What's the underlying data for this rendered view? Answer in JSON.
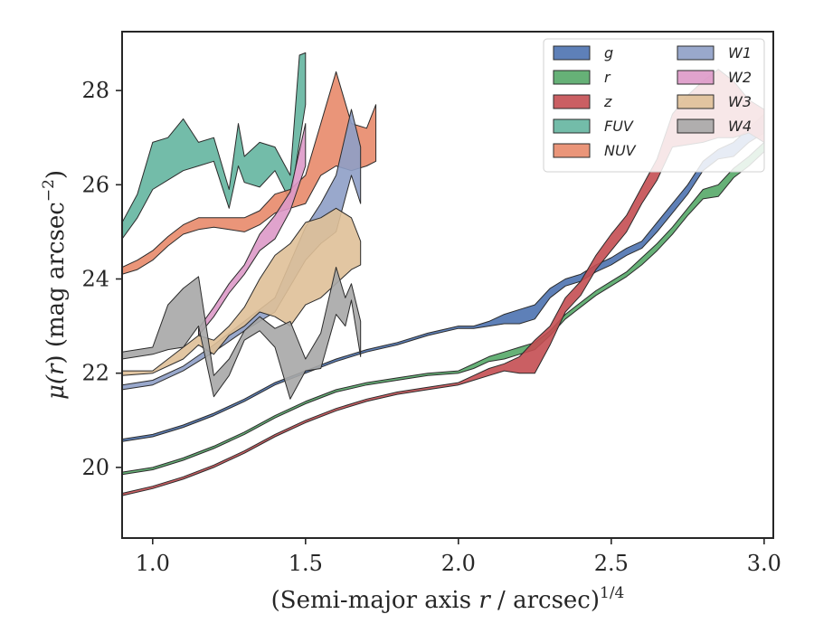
{
  "chart_data": {
    "type": "area",
    "xlabel": "(Semi-major axis r / arcsec)",
    "xlabel_prefix": "(Semi-major axis ",
    "xlabel_var": "r",
    "xlabel_suffix": " / arcsec)",
    "xlabel_exp": "1/4",
    "ylabel": "μ(r) (mag arcsec−2)",
    "ylabel_mu": "μ(",
    "ylabel_var": "r",
    "ylabel_mid": ") (mag arcsec",
    "ylabel_exp": "−2",
    "ylabel_end": ")",
    "xlim": [
      0.9,
      3.03
    ],
    "ylim": [
      29.25,
      18.5
    ],
    "y_inverted": true,
    "xticks": [
      1.0,
      1.5,
      2.0,
      2.5,
      3.0
    ],
    "xtick_labels": [
      "1.0",
      "1.5",
      "2.0",
      "2.5",
      "3.0"
    ],
    "yticks": [
      20,
      22,
      24,
      26,
      28
    ],
    "ytick_labels": [
      "20",
      "22",
      "24",
      "26",
      "28"
    ],
    "grid": false,
    "legend_position": "top-right",
    "legend_columns": 2,
    "series": [
      {
        "name": "g",
        "color": "#4c72b0",
        "x": [
          0.9,
          1.0,
          1.1,
          1.2,
          1.3,
          1.4,
          1.5,
          1.6,
          1.7,
          1.8,
          1.9,
          2.0,
          2.05,
          2.1,
          2.15,
          2.2,
          2.25,
          2.3,
          2.35,
          2.4,
          2.45,
          2.5,
          2.55,
          2.6,
          2.65,
          2.7,
          2.75,
          2.8,
          2.85,
          2.9,
          2.95,
          3.0
        ],
        "y_upper": [
          20.55,
          20.65,
          20.85,
          21.1,
          21.4,
          21.75,
          22.0,
          22.25,
          22.45,
          22.6,
          22.8,
          22.95,
          22.95,
          23.0,
          23.05,
          23.05,
          23.15,
          23.6,
          23.85,
          23.95,
          24.15,
          24.3,
          24.5,
          24.65,
          25.0,
          25.4,
          25.8,
          26.3,
          26.55,
          26.6,
          26.9,
          27.1
        ],
        "y_lower": [
          20.6,
          20.7,
          20.9,
          21.15,
          21.45,
          21.8,
          22.05,
          22.3,
          22.5,
          22.65,
          22.85,
          23.0,
          23.0,
          23.1,
          23.25,
          23.35,
          23.45,
          23.8,
          24.0,
          24.1,
          24.3,
          24.45,
          24.65,
          24.8,
          25.2,
          25.6,
          26.0,
          26.5,
          26.75,
          26.9,
          27.2,
          27.5
        ]
      },
      {
        "name": "r",
        "color": "#55a868",
        "x": [
          0.9,
          1.0,
          1.1,
          1.2,
          1.3,
          1.4,
          1.5,
          1.6,
          1.7,
          1.8,
          1.9,
          2.0,
          2.05,
          2.1,
          2.15,
          2.2,
          2.25,
          2.3,
          2.35,
          2.4,
          2.45,
          2.5,
          2.55,
          2.6,
          2.65,
          2.7,
          2.75,
          2.8,
          2.85,
          2.9,
          2.95,
          3.0
        ],
        "y_upper": [
          19.85,
          19.95,
          20.15,
          20.4,
          20.7,
          21.05,
          21.35,
          21.6,
          21.75,
          21.85,
          21.95,
          22.0,
          22.1,
          22.25,
          22.3,
          22.4,
          22.5,
          22.8,
          23.15,
          23.4,
          23.65,
          23.85,
          24.05,
          24.3,
          24.6,
          24.95,
          25.35,
          25.7,
          25.75,
          26.15,
          26.4,
          26.7
        ],
        "y_lower": [
          19.9,
          20.0,
          20.2,
          20.45,
          20.75,
          21.1,
          21.4,
          21.65,
          21.8,
          21.9,
          22.0,
          22.05,
          22.2,
          22.35,
          22.45,
          22.55,
          22.65,
          22.9,
          23.25,
          23.5,
          23.75,
          23.95,
          24.15,
          24.45,
          24.75,
          25.1,
          25.5,
          25.9,
          26.0,
          26.35,
          26.6,
          26.9
        ]
      },
      {
        "name": "z",
        "color": "#c44e52",
        "x": [
          0.9,
          1.0,
          1.1,
          1.2,
          1.3,
          1.4,
          1.5,
          1.6,
          1.7,
          1.8,
          1.9,
          2.0,
          2.05,
          2.1,
          2.15,
          2.2,
          2.25,
          2.3,
          2.35,
          2.4,
          2.45,
          2.5,
          2.55,
          2.6,
          2.65,
          2.7,
          2.75,
          2.8,
          2.85,
          2.9,
          2.95,
          3.0
        ],
        "y_upper": [
          19.4,
          19.55,
          19.75,
          20.0,
          20.3,
          20.65,
          20.95,
          21.2,
          21.4,
          21.55,
          21.65,
          21.75,
          21.85,
          21.95,
          22.05,
          22.0,
          22.0,
          22.6,
          23.3,
          23.65,
          24.2,
          24.6,
          25.0,
          25.6,
          26.1,
          26.8,
          26.85,
          26.9,
          27.0,
          27.0,
          27.1,
          26.9
        ],
        "y_lower": [
          19.45,
          19.6,
          19.8,
          20.05,
          20.35,
          20.7,
          21.0,
          21.25,
          21.45,
          21.6,
          21.7,
          21.8,
          21.95,
          22.1,
          22.2,
          22.35,
          22.7,
          23.0,
          23.6,
          23.95,
          24.5,
          24.95,
          25.35,
          25.95,
          26.55,
          27.5,
          27.9,
          28.2,
          28.45,
          28.2,
          27.8,
          27.6
        ]
      },
      {
        "name": "FUV",
        "color": "#64b5a0",
        "x": [
          0.9,
          0.95,
          1.0,
          1.05,
          1.1,
          1.15,
          1.2,
          1.25,
          1.28,
          1.3,
          1.35,
          1.4,
          1.45,
          1.48,
          1.5
        ],
        "y_upper": [
          24.85,
          25.3,
          25.9,
          26.1,
          26.3,
          26.4,
          26.5,
          25.5,
          26.4,
          26.05,
          25.95,
          26.3,
          25.65,
          26.9,
          27.7
        ],
        "y_lower": [
          25.2,
          25.8,
          26.9,
          27.0,
          27.4,
          26.9,
          27.0,
          25.9,
          27.3,
          26.6,
          26.9,
          26.8,
          26.2,
          28.75,
          28.8
        ]
      },
      {
        "name": "NUV",
        "color": "#e8896a",
        "x": [
          0.9,
          0.95,
          1.0,
          1.05,
          1.1,
          1.15,
          1.2,
          1.25,
          1.3,
          1.35,
          1.4,
          1.45,
          1.5,
          1.55,
          1.6,
          1.65,
          1.7,
          1.73
        ],
        "y_upper": [
          24.1,
          24.2,
          24.4,
          24.7,
          24.95,
          25.05,
          25.1,
          25.05,
          25.0,
          25.15,
          25.4,
          25.5,
          25.6,
          26.2,
          26.4,
          26.3,
          26.4,
          26.5
        ],
        "y_lower": [
          24.25,
          24.4,
          24.6,
          24.9,
          25.15,
          25.3,
          25.3,
          25.3,
          25.3,
          25.45,
          25.8,
          25.9,
          26.2,
          27.3,
          28.4,
          27.3,
          27.2,
          27.7
        ]
      },
      {
        "name": "W1",
        "color": "#8e9ec7",
        "x": [
          0.9,
          1.0,
          1.1,
          1.2,
          1.3,
          1.4,
          1.5,
          1.55,
          1.6,
          1.65,
          1.68
        ],
        "y_upper": [
          21.65,
          21.75,
          22.05,
          22.45,
          22.9,
          23.3,
          24.4,
          24.75,
          25.0,
          26.2,
          25.6
        ],
        "y_lower": [
          21.75,
          21.85,
          22.15,
          22.6,
          23.1,
          23.6,
          25.1,
          25.6,
          26.2,
          27.6,
          26.8
        ]
      },
      {
        "name": "W2",
        "color": "#dd99c8",
        "x": [
          1.15,
          1.2,
          1.25,
          1.3,
          1.35,
          1.4,
          1.45,
          1.5
        ],
        "y_upper": [
          22.8,
          23.2,
          23.7,
          24.1,
          24.6,
          24.85,
          25.45,
          26.4
        ],
        "y_lower": [
          22.95,
          23.4,
          23.9,
          24.3,
          24.95,
          25.35,
          25.85,
          27.3
        ]
      },
      {
        "name": "W3",
        "color": "#dfc098",
        "x": [
          0.9,
          1.0,
          1.1,
          1.15,
          1.2,
          1.25,
          1.3,
          1.35,
          1.4,
          1.45,
          1.5,
          1.55,
          1.6,
          1.65,
          1.68
        ],
        "y_upper": [
          21.95,
          22.0,
          22.3,
          22.6,
          22.4,
          22.8,
          23.0,
          23.3,
          23.2,
          23.0,
          23.45,
          23.6,
          23.9,
          24.2,
          24.3
        ],
        "y_lower": [
          22.05,
          22.05,
          22.55,
          22.8,
          22.7,
          23.0,
          23.4,
          24.0,
          24.5,
          24.75,
          25.2,
          25.3,
          25.5,
          25.3,
          24.8
        ]
      },
      {
        "name": "W4",
        "color": "#a7a7a7",
        "x": [
          0.9,
          1.0,
          1.05,
          1.1,
          1.15,
          1.2,
          1.25,
          1.3,
          1.35,
          1.4,
          1.45,
          1.5,
          1.55,
          1.6,
          1.63,
          1.65,
          1.68
        ],
        "y_upper": [
          22.3,
          22.4,
          22.5,
          22.55,
          23.0,
          21.5,
          21.95,
          22.7,
          22.9,
          22.55,
          21.45,
          22.05,
          22.1,
          23.25,
          23.0,
          23.55,
          22.35
        ],
        "y_lower": [
          22.45,
          22.55,
          23.45,
          23.8,
          24.05,
          21.95,
          22.3,
          22.9,
          23.2,
          22.95,
          23.1,
          22.3,
          22.85,
          24.25,
          23.6,
          23.9,
          23.1
        ]
      }
    ]
  }
}
